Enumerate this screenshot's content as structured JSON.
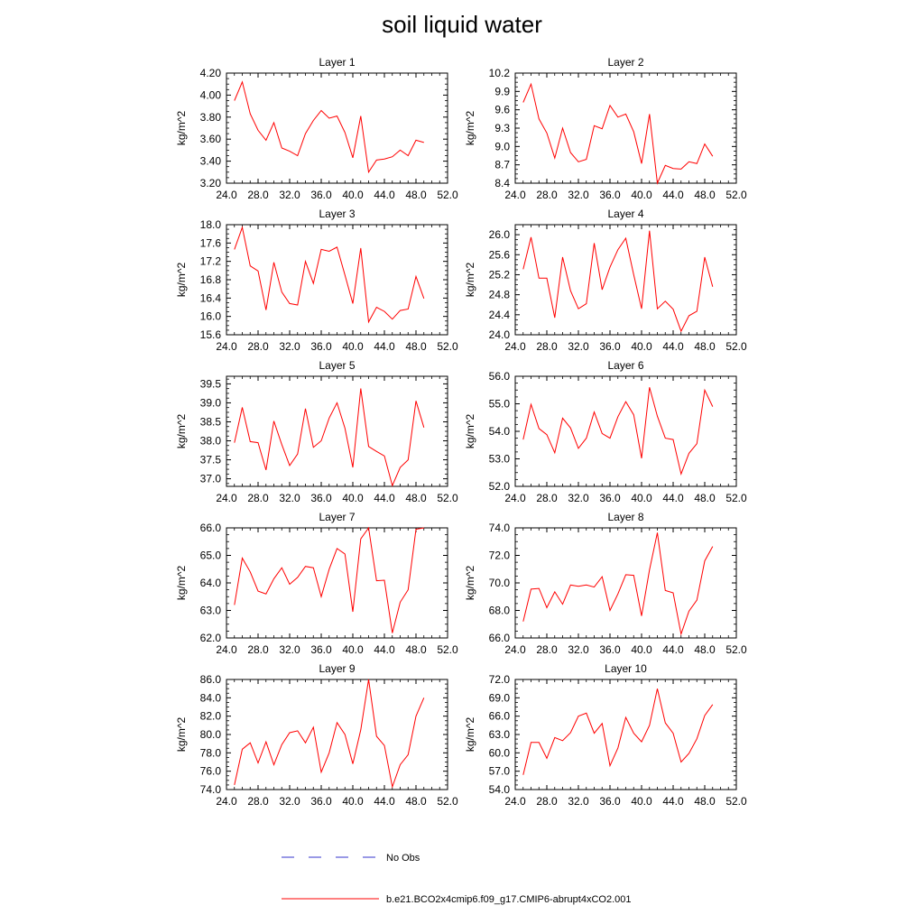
{
  "title": "soil liquid water",
  "legend": {
    "items": [
      {
        "label": "No Obs",
        "color": "#3333cc",
        "dash": true
      },
      {
        "label": "b.e21.BCO2x4cmip6.f09_g17.CMIP6-abrupt4xCO2.001",
        "color": "#ff0000",
        "dash": false
      }
    ]
  },
  "chart_data": [
    {
      "type": "line",
      "title": "Layer 1",
      "xlabel": "",
      "ylabel": "kg/m^2",
      "xlim": [
        24,
        52
      ],
      "ylim": [
        3.2,
        4.2
      ],
      "xticks": [
        "24.0",
        "28.0",
        "32.0",
        "36.0",
        "40.0",
        "44.0",
        "48.0",
        "52.0"
      ],
      "yticks": [
        "3.20",
        "3.40",
        "3.60",
        "3.80",
        "4.00",
        "4.20"
      ],
      "series": [
        {
          "color": "#ff0000",
          "x": [
            25,
            26,
            27,
            28,
            29,
            30,
            31,
            32,
            33,
            34,
            35,
            36,
            37,
            38,
            39,
            40,
            41,
            42,
            43,
            44,
            45,
            46,
            47,
            48,
            49
          ],
          "values": [
            3.95,
            4.12,
            3.83,
            3.68,
            3.59,
            3.75,
            3.52,
            3.49,
            3.45,
            3.65,
            3.77,
            3.86,
            3.79,
            3.81,
            3.66,
            3.43,
            3.81,
            3.3,
            3.41,
            3.42,
            3.44,
            3.5,
            3.45,
            3.59,
            3.57
          ]
        }
      ]
    },
    {
      "type": "line",
      "title": "Layer 2",
      "xlabel": "",
      "ylabel": "kg/m^2",
      "xlim": [
        24,
        52
      ],
      "ylim": [
        8.4,
        10.2
      ],
      "xticks": [
        "24.0",
        "28.0",
        "32.0",
        "36.0",
        "40.0",
        "44.0",
        "48.0",
        "52.0"
      ],
      "yticks": [
        "8.4",
        "8.7",
        "9.0",
        "9.3",
        "9.6",
        "9.9",
        "10.2"
      ],
      "series": [
        {
          "color": "#ff0000",
          "x": [
            25,
            26,
            27,
            28,
            29,
            30,
            31,
            32,
            33,
            34,
            35,
            36,
            37,
            38,
            39,
            40,
            41,
            42,
            43,
            44,
            45,
            46,
            47,
            48,
            49
          ],
          "values": [
            9.72,
            10.02,
            9.45,
            9.22,
            8.81,
            9.3,
            8.9,
            8.75,
            8.79,
            9.34,
            9.29,
            9.67,
            9.48,
            9.53,
            9.24,
            8.72,
            9.53,
            8.4,
            8.69,
            8.64,
            8.63,
            8.75,
            8.72,
            9.04,
            8.84
          ]
        }
      ]
    },
    {
      "type": "line",
      "title": "Layer 3",
      "xlabel": "",
      "ylabel": "kg/m^2",
      "xlim": [
        24,
        52
      ],
      "ylim": [
        15.6,
        18.0
      ],
      "xticks": [
        "24.0",
        "28.0",
        "32.0",
        "36.0",
        "40.0",
        "44.0",
        "48.0",
        "52.0"
      ],
      "yticks": [
        "15.6",
        "16.0",
        "16.4",
        "16.8",
        "17.2",
        "17.6",
        "18.0"
      ],
      "series": [
        {
          "color": "#ff0000",
          "x": [
            25,
            26,
            27,
            28,
            29,
            30,
            31,
            32,
            33,
            34,
            35,
            36,
            37,
            38,
            39,
            40,
            41,
            42,
            43,
            44,
            45,
            46,
            47,
            48,
            49
          ],
          "values": [
            17.46,
            17.94,
            17.1,
            16.99,
            16.14,
            17.18,
            16.53,
            16.28,
            16.25,
            17.2,
            16.72,
            17.46,
            17.42,
            17.51,
            16.9,
            16.28,
            17.49,
            15.88,
            16.2,
            16.11,
            15.94,
            16.13,
            16.16,
            16.87,
            16.39
          ]
        }
      ]
    },
    {
      "type": "line",
      "title": "Layer 4",
      "xlabel": "",
      "ylabel": "kg/m^2",
      "xlim": [
        24,
        52
      ],
      "ylim": [
        24.0,
        26.2
      ],
      "xticks": [
        "24.0",
        "28.0",
        "32.0",
        "36.0",
        "40.0",
        "44.0",
        "48.0",
        "52.0"
      ],
      "yticks": [
        "24.0",
        "24.4",
        "24.8",
        "25.2",
        "25.6",
        "26.0"
      ],
      "series": [
        {
          "color": "#ff0000",
          "x": [
            25,
            26,
            27,
            28,
            29,
            30,
            31,
            32,
            33,
            34,
            35,
            36,
            37,
            38,
            39,
            40,
            41,
            42,
            43,
            44,
            45,
            46,
            47,
            48,
            49
          ],
          "values": [
            25.31,
            25.95,
            25.13,
            25.13,
            24.34,
            25.55,
            24.88,
            24.52,
            24.62,
            25.83,
            24.9,
            25.35,
            25.7,
            25.93,
            25.2,
            24.52,
            26.08,
            24.52,
            24.67,
            24.51,
            24.07,
            24.38,
            24.47,
            25.55,
            24.96
          ]
        }
      ]
    },
    {
      "type": "line",
      "title": "Layer 5",
      "xlabel": "",
      "ylabel": "kg/m^2",
      "xlim": [
        24,
        52
      ],
      "ylim": [
        36.8,
        39.7
      ],
      "xticks": [
        "24.0",
        "28.0",
        "32.0",
        "36.0",
        "40.0",
        "44.0",
        "48.0",
        "52.0"
      ],
      "yticks": [
        "37.0",
        "37.5",
        "38.0",
        "38.5",
        "39.0",
        "39.5"
      ],
      "series": [
        {
          "color": "#ff0000",
          "x": [
            25,
            26,
            27,
            28,
            29,
            30,
            31,
            32,
            33,
            34,
            35,
            36,
            37,
            38,
            39,
            40,
            41,
            42,
            43,
            44,
            45,
            46,
            47,
            48,
            49
          ],
          "values": [
            37.95,
            38.88,
            37.98,
            37.95,
            37.23,
            38.52,
            37.9,
            37.35,
            37.65,
            38.85,
            37.83,
            38.0,
            38.6,
            39.0,
            38.33,
            37.3,
            39.38,
            37.85,
            37.72,
            37.6,
            36.82,
            37.3,
            37.5,
            39.05,
            38.35
          ]
        }
      ]
    },
    {
      "type": "line",
      "title": "Layer 6",
      "xlabel": "",
      "ylabel": "kg/m^2",
      "xlim": [
        24,
        52
      ],
      "ylim": [
        52.0,
        56.0
      ],
      "xticks": [
        "24.0",
        "28.0",
        "32.0",
        "36.0",
        "40.0",
        "44.0",
        "48.0",
        "52.0"
      ],
      "yticks": [
        "52.0",
        "53.0",
        "54.0",
        "55.0",
        "56.0"
      ],
      "series": [
        {
          "color": "#ff0000",
          "x": [
            25,
            26,
            27,
            28,
            29,
            30,
            31,
            32,
            33,
            34,
            35,
            36,
            37,
            38,
            39,
            40,
            41,
            42,
            43,
            44,
            45,
            46,
            47,
            48,
            49
          ],
          "values": [
            53.7,
            54.98,
            54.1,
            53.88,
            53.22,
            54.48,
            54.12,
            53.38,
            53.75,
            54.7,
            53.92,
            53.75,
            54.53,
            55.08,
            54.6,
            53.02,
            55.6,
            54.55,
            53.75,
            53.7,
            52.45,
            53.2,
            53.55,
            55.5,
            54.9
          ]
        }
      ]
    },
    {
      "type": "line",
      "title": "Layer 7",
      "xlabel": "",
      "ylabel": "kg/m^2",
      "xlim": [
        24,
        52
      ],
      "ylim": [
        62.0,
        66.0
      ],
      "xticks": [
        "24.0",
        "28.0",
        "32.0",
        "36.0",
        "40.0",
        "44.0",
        "48.0",
        "52.0"
      ],
      "yticks": [
        "62.0",
        "63.0",
        "64.0",
        "65.0",
        "66.0"
      ],
      "series": [
        {
          "color": "#ff0000",
          "x": [
            25,
            26,
            27,
            28,
            29,
            30,
            31,
            32,
            33,
            34,
            35,
            36,
            37,
            38,
            39,
            40,
            41,
            42,
            43,
            44,
            45,
            46,
            47,
            48,
            49
          ],
          "values": [
            63.2,
            64.9,
            64.4,
            63.7,
            63.6,
            64.15,
            64.55,
            63.95,
            64.2,
            64.6,
            64.55,
            63.5,
            64.5,
            65.25,
            65.05,
            62.95,
            65.6,
            66.0,
            64.08,
            64.1,
            62.18,
            63.3,
            63.75,
            65.95,
            66.0
          ]
        }
      ]
    },
    {
      "type": "line",
      "title": "Layer 8",
      "xlabel": "",
      "ylabel": "kg/m^2",
      "xlim": [
        24,
        52
      ],
      "ylim": [
        66.0,
        74.0
      ],
      "xticks": [
        "24.0",
        "28.0",
        "32.0",
        "36.0",
        "40.0",
        "44.0",
        "48.0",
        "52.0"
      ],
      "yticks": [
        "66.0",
        "68.0",
        "70.0",
        "72.0",
        "74.0"
      ],
      "series": [
        {
          "color": "#ff0000",
          "x": [
            25,
            26,
            27,
            28,
            29,
            30,
            31,
            32,
            33,
            34,
            35,
            36,
            37,
            38,
            39,
            40,
            41,
            42,
            43,
            44,
            45,
            46,
            47,
            48,
            49
          ],
          "values": [
            67.2,
            69.55,
            69.6,
            68.2,
            69.35,
            68.45,
            69.85,
            69.75,
            69.85,
            69.7,
            70.45,
            68.0,
            69.2,
            70.6,
            70.55,
            67.6,
            70.95,
            73.65,
            69.45,
            69.28,
            66.28,
            67.95,
            68.75,
            71.6,
            72.65
          ]
        }
      ]
    },
    {
      "type": "line",
      "title": "Layer 9",
      "xlabel": "",
      "ylabel": "kg/m^2",
      "xlim": [
        24,
        52
      ],
      "ylim": [
        74.0,
        86.0
      ],
      "xticks": [
        "24.0",
        "28.0",
        "32.0",
        "36.0",
        "40.0",
        "44.0",
        "48.0",
        "52.0"
      ],
      "yticks": [
        "74.0",
        "76.0",
        "78.0",
        "80.0",
        "82.0",
        "84.0",
        "86.0"
      ],
      "series": [
        {
          "color": "#ff0000",
          "x": [
            25,
            26,
            27,
            28,
            29,
            30,
            31,
            32,
            33,
            34,
            35,
            36,
            37,
            38,
            39,
            40,
            41,
            42,
            43,
            44,
            45,
            46,
            47,
            48,
            49
          ],
          "values": [
            74.5,
            78.4,
            79.1,
            76.9,
            79.2,
            76.7,
            78.9,
            80.2,
            80.4,
            79.1,
            80.8,
            75.9,
            78.0,
            81.3,
            80.0,
            76.8,
            80.5,
            86.0,
            79.8,
            78.8,
            74.3,
            76.7,
            77.8,
            82.0,
            84.0
          ]
        }
      ]
    },
    {
      "type": "line",
      "title": "Layer 10",
      "xlabel": "",
      "ylabel": "kg/m^2",
      "xlim": [
        24,
        52
      ],
      "ylim": [
        54.0,
        72.0
      ],
      "xticks": [
        "24.0",
        "28.0",
        "32.0",
        "36.0",
        "40.0",
        "44.0",
        "48.0",
        "52.0"
      ],
      "yticks": [
        "54.0",
        "57.0",
        "60.0",
        "63.0",
        "66.0",
        "69.0",
        "72.0"
      ],
      "series": [
        {
          "color": "#ff0000",
          "x": [
            25,
            26,
            27,
            28,
            29,
            30,
            31,
            32,
            33,
            34,
            35,
            36,
            37,
            38,
            39,
            40,
            41,
            42,
            43,
            44,
            45,
            46,
            47,
            48,
            49
          ],
          "values": [
            56.4,
            61.7,
            61.7,
            59.1,
            62.5,
            62.0,
            63.3,
            66.0,
            66.5,
            63.2,
            64.8,
            57.9,
            60.8,
            65.8,
            63.2,
            61.8,
            64.5,
            70.5,
            64.9,
            63.2,
            58.5,
            59.9,
            62.3,
            66.1,
            67.9
          ]
        }
      ]
    }
  ]
}
